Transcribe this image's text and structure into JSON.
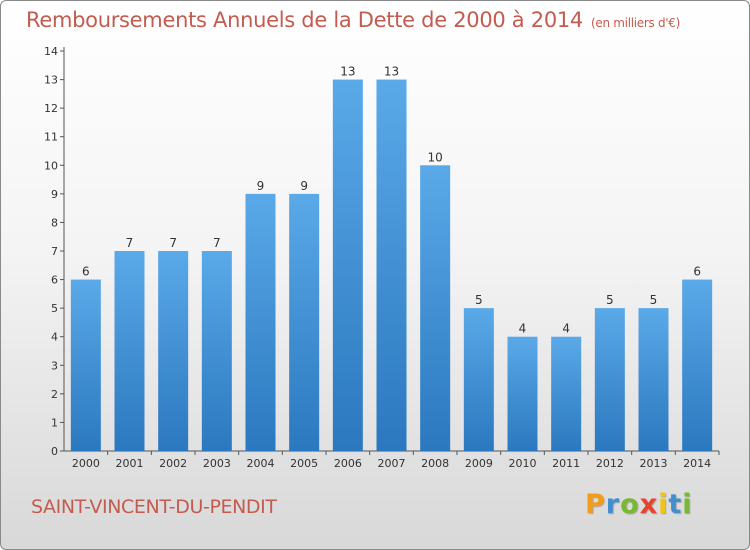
{
  "header": {
    "title": "Remboursements Annuels de la Dette de 2000 à 2014",
    "subtitle": "(en milliers d'€)"
  },
  "footer": {
    "location": "SAINT-VINCENT-DU-PENDIT",
    "logo": {
      "letters": [
        "P",
        "r",
        "o",
        "x",
        "i",
        "t",
        "i"
      ],
      "colors": [
        "#f39c1a",
        "#3f8fd1",
        "#78b832",
        "#e8412c",
        "#f0c419",
        "#3f8fd1",
        "#78b832"
      ]
    }
  },
  "colors": {
    "bar_light": "#5aa9e8",
    "bar_dark": "#2b78bf",
    "axis": "#555555",
    "grid_tick": "#555555"
  },
  "chart_data": {
    "type": "bar",
    "categories": [
      "2000",
      "2001",
      "2002",
      "2003",
      "2004",
      "2005",
      "2006",
      "2007",
      "2008",
      "2009",
      "2010",
      "2011",
      "2012",
      "2013",
      "2014"
    ],
    "values": [
      6,
      7,
      7,
      7,
      9,
      9,
      13,
      13,
      10,
      5,
      4,
      4,
      5,
      5,
      6
    ],
    "y_ticks": [
      0,
      1,
      2,
      3,
      4,
      5,
      6,
      7,
      8,
      9,
      10,
      11,
      12,
      13,
      14
    ],
    "ylim": [
      0,
      14
    ],
    "grid": false,
    "legend": "none"
  }
}
